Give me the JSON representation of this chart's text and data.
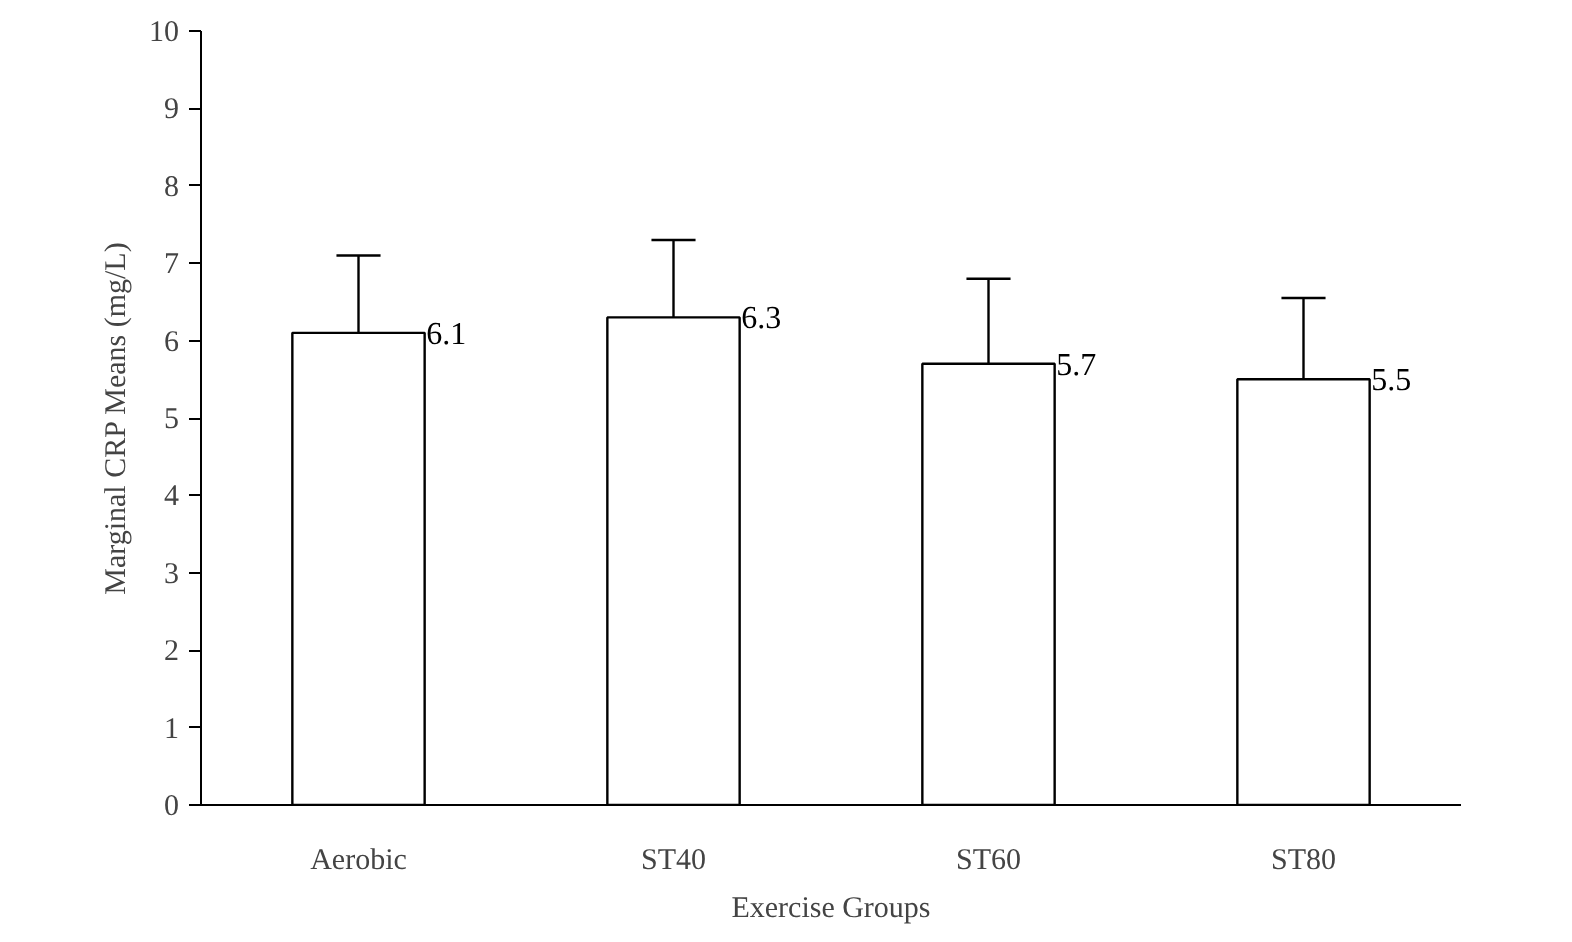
{
  "chart_data": {
    "type": "bar",
    "xlabel": "Exercise Groups",
    "ylabel": "Marginal CRP Means (mg/L)",
    "categories": [
      "Aerobic",
      "ST40",
      "ST60",
      "ST80"
    ],
    "values": [
      6.1,
      6.3,
      5.7,
      5.5
    ],
    "errors": [
      [
        6.1,
        7.1
      ],
      [
        6.3,
        7.3
      ],
      [
        5.7,
        6.8
      ],
      [
        5.5,
        6.55
      ]
    ],
    "color": "#ffffff",
    "ylim": [
      0,
      10
    ],
    "yticks": [
      0,
      1,
      2,
      3,
      4,
      5,
      6,
      7,
      8,
      9,
      10
    ],
    "data_labels": true,
    "grid": false
  }
}
